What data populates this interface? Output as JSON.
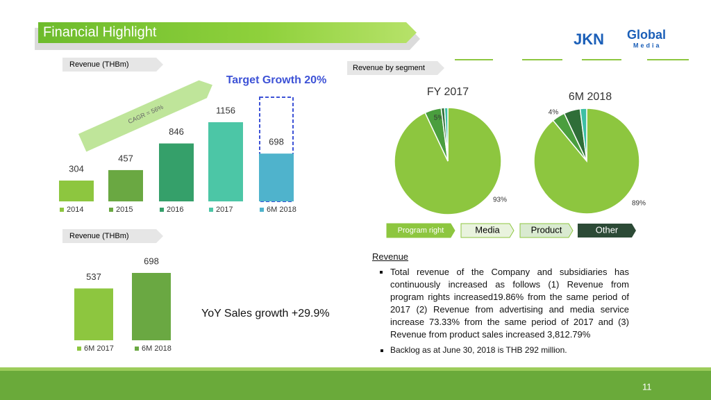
{
  "title": "Financial Highlight",
  "logo": {
    "left": "JKN",
    "right": "Global",
    "sub": "Media"
  },
  "page_number": "11",
  "chart_data": [
    {
      "type": "bar",
      "title": "Revenue (THBm)",
      "categories": [
        "2014",
        "2015",
        "2016",
        "2017",
        "6M 2018"
      ],
      "values": [
        304,
        457,
        846,
        1156,
        698
      ],
      "colors": [
        "#8dc63f",
        "#6aa842",
        "#35a06a",
        "#4cc6a6",
        "#4fb3cc"
      ],
      "annotations": [
        "Target Growth 20%",
        "CAGR = 56%"
      ]
    },
    {
      "type": "bar",
      "title": "Revenue (THBm)",
      "categories": [
        "6M 2017",
        "6M 2018"
      ],
      "values": [
        537,
        698
      ],
      "colors": [
        "#8dc63f",
        "#6aa842"
      ],
      "annotations": [
        "YoY Sales growth  +29.9%"
      ]
    },
    {
      "type": "pie",
      "title": "Revenue by segment",
      "categories": [
        "Program right",
        "Media",
        "Product",
        "Other"
      ],
      "colors": [
        "#8dc63f",
        "#4a9e3e",
        "#2f6e38",
        "#3dbfa5"
      ],
      "series": [
        {
          "name": "FY 2017",
          "values": [
            93,
            5,
            1,
            1
          ],
          "value_labels": [
            "93%",
            "5%",
            null,
            null
          ]
        },
        {
          "name": "6M 2018",
          "values": [
            89,
            4,
            5,
            2
          ],
          "value_labels": [
            "89%",
            "4%",
            null,
            null
          ]
        }
      ]
    }
  ],
  "text": {
    "heading": "Revenue",
    "bullets": [
      "Total revenue of the Company and subsidiaries has continuously increased as follows (1) Revenue from program rights increased19.86% from the same period of 2017 (2) Revenue from advertising and media service increase 73.33% from the same period of 2017 and (3) Revenue from product sales increased 3,812.79%",
      "Backlog as at June 30, 2018 is THB 292 million."
    ]
  }
}
